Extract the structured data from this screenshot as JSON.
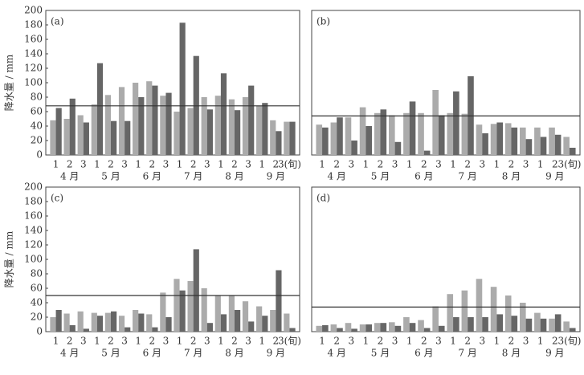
{
  "chart_data": [
    {
      "type": "bar",
      "panel_label": "(a)",
      "ylabel": "降水量 / mm",
      "categories": [
        "1",
        "2",
        "3",
        "1",
        "2",
        "3",
        "1",
        "2",
        "3",
        "1",
        "2",
        "3",
        "1",
        "2",
        "3",
        "1",
        "2",
        "3(旬)"
      ],
      "month_labels": [
        "4 月",
        "5 月",
        "6 月",
        "7 月",
        "8 月",
        "9 月"
      ],
      "series": [
        {
          "color": "#ababab",
          "values": [
            48,
            50,
            55,
            70,
            83,
            94,
            100,
            102,
            82,
            60,
            65,
            80,
            82,
            77,
            80,
            68,
            48,
            46
          ]
        },
        {
          "color": "#666666",
          "values": [
            65,
            78,
            45,
            127,
            47,
            47,
            80,
            96,
            86,
            183,
            137,
            63,
            113,
            62,
            96,
            72,
            33,
            46
          ]
        }
      ],
      "reference_line": 68,
      "ylim": [
        0,
        200
      ],
      "yticks": [
        0,
        20,
        40,
        60,
        80,
        100,
        120,
        140,
        160,
        180,
        200
      ]
    },
    {
      "type": "bar",
      "panel_label": "(b)",
      "categories": [
        "1",
        "2",
        "3",
        "1",
        "2",
        "3",
        "1",
        "2",
        "3",
        "1",
        "2",
        "3",
        "1",
        "2",
        "3",
        "1",
        "2",
        "3(旬)"
      ],
      "month_labels": [
        "4 月",
        "5 月",
        "6 月",
        "7 月",
        "8 月",
        "9 月"
      ],
      "series": [
        {
          "color": "#ababab",
          "values": [
            42,
            45,
            52,
            66,
            58,
            55,
            58,
            58,
            90,
            58,
            57,
            42,
            43,
            44,
            38,
            38,
            38,
            25
          ]
        },
        {
          "color": "#666666",
          "values": [
            38,
            52,
            20,
            40,
            63,
            18,
            74,
            6,
            55,
            88,
            109,
            30,
            45,
            38,
            22,
            25,
            28,
            10
          ]
        }
      ],
      "reference_line": 54,
      "ylim": [
        0,
        200
      ]
    },
    {
      "type": "bar",
      "panel_label": "(c)",
      "ylabel": "降水量 / mm",
      "categories": [
        "1",
        "2",
        "3",
        "1",
        "2",
        "3",
        "1",
        "2",
        "3",
        "1",
        "2",
        "3",
        "1",
        "2",
        "3",
        "1",
        "2",
        "3(旬)"
      ],
      "month_labels": [
        "4 月",
        "5 月",
        "6 月",
        "7 月",
        "8 月",
        "9 月"
      ],
      "series": [
        {
          "color": "#ababab",
          "values": [
            20,
            25,
            28,
            26,
            26,
            22,
            30,
            24,
            54,
            73,
            70,
            60,
            50,
            50,
            42,
            35,
            30,
            25
          ]
        },
        {
          "color": "#666666",
          "values": [
            30,
            9,
            4,
            22,
            28,
            6,
            25,
            6,
            20,
            57,
            114,
            12,
            24,
            30,
            14,
            22,
            85,
            5
          ]
        }
      ],
      "reference_line": 50,
      "ylim": [
        0,
        200
      ],
      "yticks": [
        0,
        20,
        40,
        60,
        80,
        100,
        120,
        140,
        160,
        180,
        200
      ]
    },
    {
      "type": "bar",
      "panel_label": "(d)",
      "categories": [
        "1",
        "2",
        "3",
        "1",
        "2",
        "3",
        "1",
        "2",
        "3",
        "1",
        "2",
        "3",
        "1",
        "2",
        "3",
        "1",
        "2",
        "3(旬)"
      ],
      "month_labels": [
        "4 月",
        "5 月",
        "6 月",
        "7 月",
        "8 月",
        "9 月"
      ],
      "series": [
        {
          "color": "#ababab",
          "values": [
            8,
            10,
            12,
            10,
            12,
            13,
            20,
            16,
            35,
            52,
            57,
            73,
            62,
            50,
            40,
            26,
            18,
            14
          ]
        },
        {
          "color": "#666666",
          "values": [
            9,
            5,
            4,
            10,
            12,
            8,
            12,
            5,
            8,
            20,
            20,
            20,
            24,
            22,
            18,
            18,
            24,
            5
          ]
        }
      ],
      "reference_line": 34,
      "ylim": [
        0,
        200
      ]
    }
  ]
}
